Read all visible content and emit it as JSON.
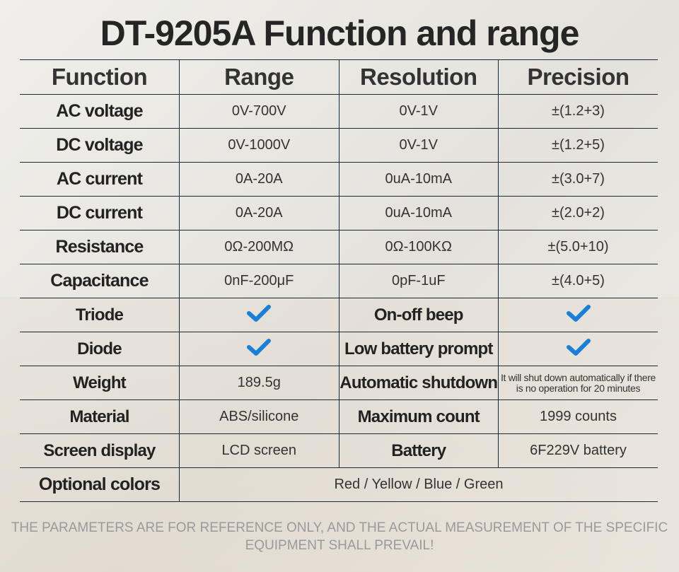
{
  "title": "DT-9205A Function and range",
  "headers": [
    "Function",
    "Range",
    "Resolution",
    "Precision"
  ],
  "rows": [
    {
      "function": "AC voltage",
      "range": "0V-700V",
      "resolution": "0V-1V",
      "precision": "±(1.2+3)"
    },
    {
      "function": "DC voltage",
      "range": "0V-1000V",
      "resolution": "0V-1V",
      "precision": "±(1.2+5)"
    },
    {
      "function": "AC current",
      "range": "0A-20A",
      "resolution": "0uA-10mA",
      "precision": "±(3.0+7)"
    },
    {
      "function": "DC current",
      "range": "0A-20A",
      "resolution": "0uA-10mA",
      "precision": "±(2.0+2)"
    },
    {
      "function": "Resistance",
      "range": "0Ω-200MΩ",
      "resolution": "0Ω-100KΩ",
      "precision": "±(5.0+10)"
    },
    {
      "function": "Capacitance",
      "range": "0nF-200μF",
      "resolution": "0pF-1uF",
      "precision": "±(4.0+5)"
    }
  ],
  "features": [
    {
      "label": "Triode",
      "value": "check-icon",
      "label2": "On-off beep",
      "value2": "check-icon"
    },
    {
      "label": "Diode",
      "value": "check-icon",
      "label2": "Low battery prompt",
      "value2": "check-icon"
    },
    {
      "label": "Weight",
      "value": "189.5g",
      "label2": "Automatic shutdown",
      "value2": "It will shut down automatically if there is no operation for 20 minutes"
    },
    {
      "label": "Material",
      "value": "ABS/silicone",
      "label2": "Maximum count",
      "value2": "1999 counts"
    },
    {
      "label": "Screen display",
      "value": "LCD screen",
      "label2": "Battery",
      "value2": "6F229V battery"
    }
  ],
  "optional_colors": {
    "label": "Optional colors",
    "value": "Red / Yellow / Blue / Green"
  },
  "footer": "THE PARAMETERS ARE FOR REFERENCE ONLY, AND THE ACTUAL MEASUREMENT OF THE SPECIFIC EQUIPMENT SHALL PREVAIL!",
  "colors": {
    "check": "#1a7fd8",
    "text": "#2b2b2b",
    "border": "#1b2a3a"
  }
}
